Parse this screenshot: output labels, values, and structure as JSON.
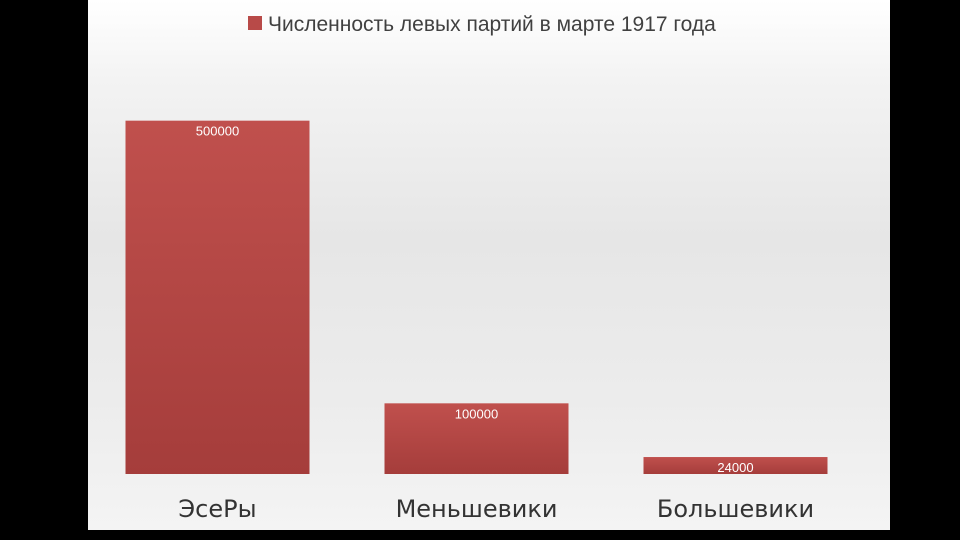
{
  "chart_data": {
    "type": "bar",
    "categories": [
      "ЭсеРы",
      "Меньшевики",
      "Большевики"
    ],
    "series": [
      {
        "name": "Численность левых партий в марте 1917 года",
        "values": [
          500000,
          100000,
          24000
        ]
      }
    ],
    "value_labels": [
      "500000",
      "100000",
      "24000"
    ],
    "ylim": [
      0,
      600000
    ],
    "grid": false,
    "legend": "top",
    "bar_color": "#b84a48",
    "bar_color_top": "#c0504d",
    "bar_color_bottom": "#a53d3b",
    "title": "",
    "xlabel": "",
    "ylabel": ""
  }
}
